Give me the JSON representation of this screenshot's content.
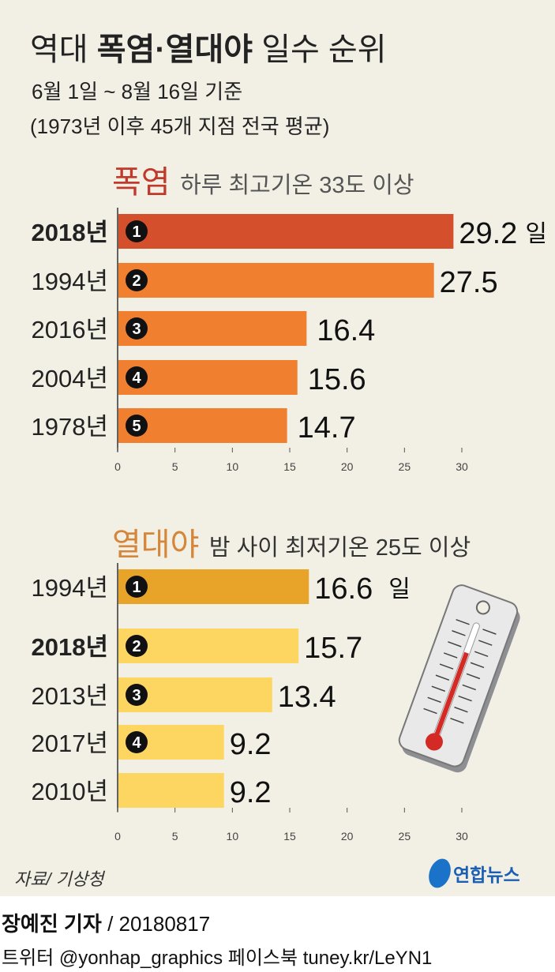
{
  "title": {
    "prefix": "역대",
    "bold": "폭염·열대야",
    "suffix": "일수 순위"
  },
  "subtitle1": "6월 1일 ~ 8월 16일 기준",
  "subtitle2": "(1973년 이후 45개 지점 전국 평균)",
  "chart_data": [
    {
      "type": "bar",
      "orientation": "horizontal",
      "title": "폭염",
      "subtitle": "하루 최고기온 33도 이상",
      "unit": "일",
      "categories": [
        "2018년",
        "1994년",
        "2016년",
        "2004년",
        "1978년"
      ],
      "ranks": [
        "1",
        "2",
        "3",
        "4",
        "5"
      ],
      "values": [
        29.2,
        27.5,
        16.4,
        15.6,
        14.7
      ],
      "value_labels": [
        "29.2",
        "27.5",
        "16.4",
        "15.6",
        "14.7"
      ],
      "xlim": [
        0,
        30
      ],
      "xticks": [
        "0",
        "5",
        "10",
        "15",
        "20",
        "25",
        "30"
      ],
      "highlight": "2018년",
      "colors": {
        "highlight": "#d44f2b",
        "bar": "#f07f30",
        "title": "#c0392b"
      }
    },
    {
      "type": "bar",
      "orientation": "horizontal",
      "title": "열대야",
      "subtitle": "밤 사이 최저기온 25도 이상",
      "unit": "일",
      "categories": [
        "1994년",
        "2018년",
        "2013년",
        "2017년",
        "2010년"
      ],
      "ranks": [
        "1",
        "2",
        "3",
        "4",
        ""
      ],
      "values": [
        16.6,
        15.7,
        13.4,
        9.2,
        9.2
      ],
      "value_labels": [
        "16.6",
        "15.7",
        "13.4",
        "9.2",
        "9.2"
      ],
      "xlim": [
        0,
        30
      ],
      "xticks": [
        "0",
        "5",
        "10",
        "15",
        "20",
        "25",
        "30"
      ],
      "highlight": "2018년",
      "colors": {
        "highlight": "#e8a429",
        "bar": "#fdd561",
        "title": "#d4873a"
      }
    }
  ],
  "source": "자료/ 기상청",
  "logo": "연합뉴스",
  "byline": {
    "reporter": "장예진 기자",
    "date": "/ 20180817"
  },
  "social": "트위터 @yonhap_graphics  페이스북 tuney.kr/LeYN1",
  "icon": "thermometer-icon"
}
